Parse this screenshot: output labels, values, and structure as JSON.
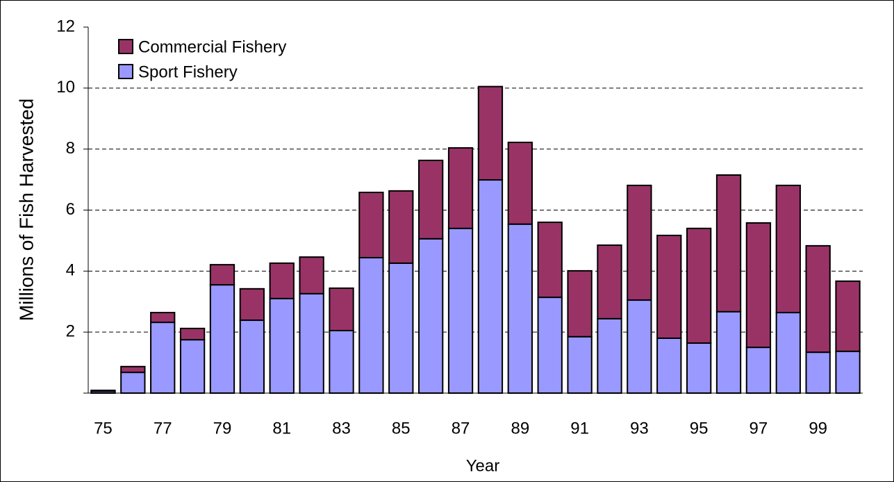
{
  "chart_data": {
    "type": "stacked-bar",
    "x_label": "Year",
    "y_label": "Millions of Fish Harvested",
    "categories": [
      "75",
      null,
      "77",
      null,
      "79",
      null,
      "81",
      null,
      "83",
      null,
      "85",
      null,
      "87",
      null,
      "89",
      null,
      "91",
      null,
      "93",
      null,
      "95",
      null,
      "97",
      null,
      "99",
      null
    ],
    "series": [
      {
        "name": "Commercial Fishery",
        "color": "#993366",
        "values": [
          0.03,
          0.19,
          0.32,
          0.37,
          0.66,
          1.03,
          1.16,
          1.2,
          1.39,
          2.14,
          2.37,
          2.57,
          2.64,
          3.06,
          2.68,
          2.46,
          2.16,
          2.41,
          3.76,
          3.37,
          3.76,
          4.48,
          4.08,
          4.17,
          3.49,
          2.3
        ]
      },
      {
        "name": "Sport Fishery",
        "color": "#9999ff",
        "values": [
          0.06,
          0.68,
          2.32,
          1.75,
          3.55,
          2.39,
          3.1,
          3.26,
          2.05,
          4.44,
          4.26,
          5.06,
          5.4,
          6.99,
          5.54,
          3.14,
          1.85,
          2.44,
          3.05,
          1.8,
          1.64,
          2.67,
          1.5,
          2.64,
          1.34,
          1.37
        ]
      }
    ],
    "ylim": [
      0,
      12
    ],
    "yticks": [
      2,
      4,
      6,
      8,
      10,
      12
    ],
    "grid": true,
    "legend": "top-left"
  }
}
